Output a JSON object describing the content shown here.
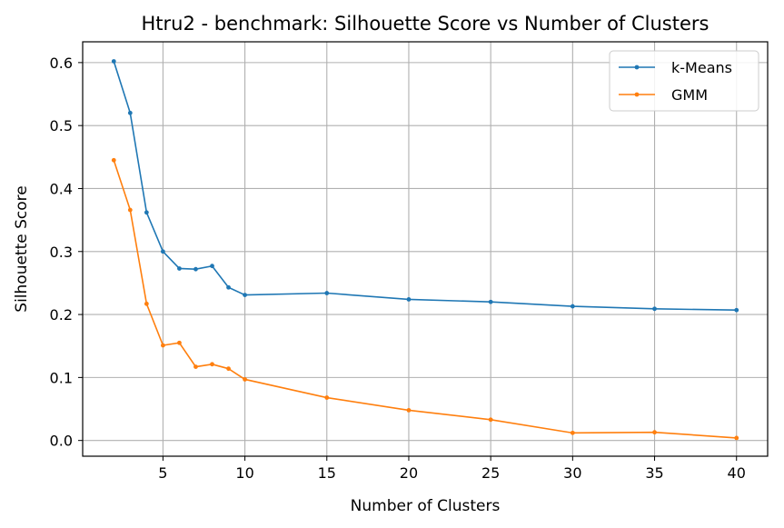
{
  "chart_data": {
    "type": "line",
    "title": "Htru2 - benchmark: Silhouette Score vs Number of Clusters",
    "xlabel": "Number of Clusters",
    "ylabel": "Silhouette Score",
    "x": [
      2,
      3,
      4,
      5,
      6,
      7,
      8,
      9,
      10,
      15,
      20,
      25,
      30,
      35,
      40
    ],
    "xlim": [
      0.1,
      41.9
    ],
    "ylim": [
      -0.025,
      0.633
    ],
    "xticks": [
      5,
      10,
      15,
      20,
      25,
      30,
      35,
      40
    ],
    "yticks": [
      0.0,
      0.1,
      0.2,
      0.3,
      0.4,
      0.5,
      0.6
    ],
    "xtick_labels": [
      "5",
      "10",
      "15",
      "20",
      "25",
      "30",
      "35",
      "40"
    ],
    "ytick_labels": [
      "0.0",
      "0.1",
      "0.2",
      "0.3",
      "0.4",
      "0.5",
      "0.6"
    ],
    "grid": true,
    "legend": "top-right",
    "series": [
      {
        "name": "k-Means",
        "color": "#1f77b4",
        "values": [
          0.602,
          0.52,
          0.362,
          0.3,
          0.273,
          0.272,
          0.277,
          0.243,
          0.231,
          0.234,
          0.224,
          0.22,
          0.213,
          0.209,
          0.207
        ]
      },
      {
        "name": "GMM",
        "color": "#ff7f0e",
        "values": [
          0.445,
          0.366,
          0.217,
          0.151,
          0.155,
          0.117,
          0.121,
          0.114,
          0.097,
          0.068,
          0.048,
          0.033,
          0.012,
          0.013,
          0.004
        ]
      }
    ]
  }
}
